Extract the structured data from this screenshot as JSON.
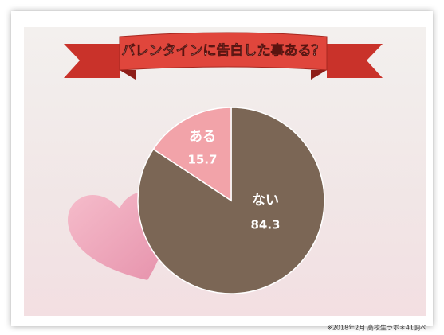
{
  "chart_data": {
    "type": "pie",
    "title": "バレンタインに告白した事ある？",
    "categories": [
      "ない",
      "ある"
    ],
    "values": [
      84.3,
      15.7
    ],
    "colors": [
      "#7b6655",
      "#f2a3a9"
    ],
    "note": "※2018年2月 高校生ラボ＊41調べ"
  }
}
